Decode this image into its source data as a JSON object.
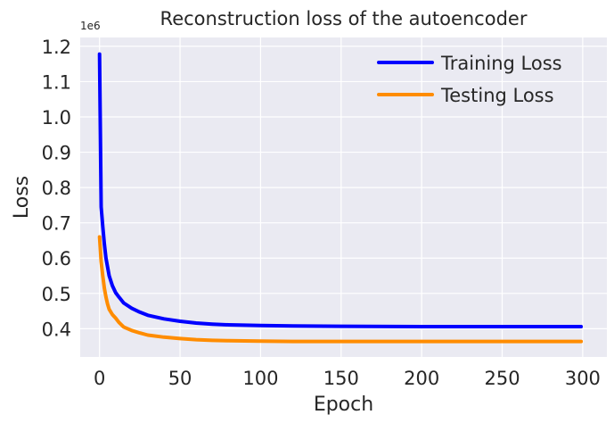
{
  "chart_data": {
    "type": "line",
    "title": "Reconstruction loss of the autoencoder",
    "xlabel": "Epoch",
    "ylabel": "Loss",
    "y_offset_label": "1e6",
    "xlim": [
      -12,
      315
    ],
    "ylim": [
      0.32,
      1.225
    ],
    "xticks": [
      0,
      50,
      100,
      150,
      200,
      250,
      300
    ],
    "xtick_labels": [
      "0",
      "50",
      "100",
      "150",
      "200",
      "250",
      "300"
    ],
    "yticks": [
      0.4,
      0.5,
      0.6,
      0.7,
      0.8,
      0.9,
      1.0,
      1.1,
      1.2
    ],
    "ytick_labels": [
      "0.4",
      "0.5",
      "0.6",
      "0.7",
      "0.8",
      "0.9",
      "1.0",
      "1.1",
      "1.2"
    ],
    "grid": true,
    "legend_position": "top-right",
    "series": [
      {
        "name": "Training Loss",
        "color": "#0000ff",
        "x": [
          0,
          1,
          2,
          3,
          4,
          5,
          6,
          8,
          10,
          12,
          15,
          20,
          25,
          30,
          40,
          50,
          60,
          70,
          80,
          100,
          120,
          150,
          200,
          250,
          299
        ],
        "values": [
          1.178,
          0.745,
          0.69,
          0.64,
          0.6,
          0.575,
          0.55,
          0.522,
          0.502,
          0.49,
          0.473,
          0.458,
          0.447,
          0.438,
          0.428,
          0.421,
          0.416,
          0.413,
          0.411,
          0.409,
          0.408,
          0.407,
          0.406,
          0.406,
          0.406
        ]
      },
      {
        "name": "Testing Loss",
        "color": "#ff8c00",
        "x": [
          0,
          1,
          2,
          3,
          4,
          5,
          6,
          8,
          10,
          12,
          15,
          20,
          25,
          30,
          40,
          50,
          60,
          70,
          80,
          100,
          120,
          150,
          200,
          250,
          299
        ],
        "values": [
          0.66,
          0.59,
          0.55,
          0.515,
          0.49,
          0.47,
          0.455,
          0.44,
          0.43,
          0.418,
          0.405,
          0.395,
          0.388,
          0.382,
          0.376,
          0.372,
          0.369,
          0.367,
          0.366,
          0.365,
          0.364,
          0.364,
          0.364,
          0.364,
          0.364
        ]
      }
    ]
  }
}
